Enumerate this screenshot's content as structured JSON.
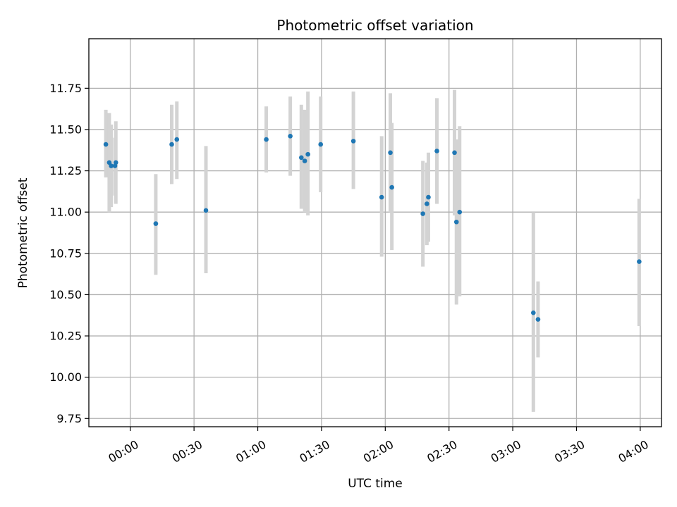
{
  "chart_data": {
    "type": "scatter",
    "title": "Photometric offset variation",
    "xlabel": "UTC time",
    "ylabel": "Photometric offset",
    "x_unit": "minutes",
    "xlim": [
      -19.5,
      250
    ],
    "ylim": [
      9.7,
      12.05
    ],
    "x_ticks": [
      {
        "value": 0,
        "label": "00:00"
      },
      {
        "value": 30,
        "label": "00:30"
      },
      {
        "value": 60,
        "label": "01:00"
      },
      {
        "value": 90,
        "label": "01:30"
      },
      {
        "value": 120,
        "label": "02:00"
      },
      {
        "value": 150,
        "label": "02:30"
      },
      {
        "value": 180,
        "label": "03:00"
      },
      {
        "value": 210,
        "label": "03:30"
      },
      {
        "value": 240,
        "label": "04:00"
      }
    ],
    "y_ticks": [
      {
        "value": 9.75,
        "label": "9.75"
      },
      {
        "value": 10.0,
        "label": "10.00"
      },
      {
        "value": 10.25,
        "label": "10.25"
      },
      {
        "value": 10.5,
        "label": "10.50"
      },
      {
        "value": 10.75,
        "label": "10.75"
      },
      {
        "value": 11.0,
        "label": "11.00"
      },
      {
        "value": 11.25,
        "label": "11.25"
      },
      {
        "value": 11.5,
        "label": "11.50"
      },
      {
        "value": 11.75,
        "label": "11.75"
      }
    ],
    "grid": true,
    "colors": {
      "point": "#1f77b4",
      "errorbar": "#d3d3d3"
    },
    "points": [
      {
        "x": -11.5,
        "y": 11.41,
        "lo": 11.21,
        "hi": 11.62
      },
      {
        "x": -9.9,
        "y": 11.3,
        "lo": 11.0,
        "hi": 11.6
      },
      {
        "x": -9.0,
        "y": 11.28,
        "lo": 11.03,
        "hi": 11.53
      },
      {
        "x": -6.8,
        "y": 11.3,
        "lo": 11.05,
        "hi": 11.55
      },
      {
        "x": -7.2,
        "y": 11.28,
        "lo": 11.1,
        "hi": 11.45
      },
      {
        "x": 12.0,
        "y": 10.93,
        "lo": 10.62,
        "hi": 11.23
      },
      {
        "x": 19.5,
        "y": 11.41,
        "lo": 11.17,
        "hi": 11.65
      },
      {
        "x": 21.9,
        "y": 11.44,
        "lo": 11.2,
        "hi": 11.67
      },
      {
        "x": 35.6,
        "y": 11.01,
        "lo": 10.63,
        "hi": 11.4
      },
      {
        "x": 64.0,
        "y": 11.44,
        "lo": 11.24,
        "hi": 11.64
      },
      {
        "x": 75.3,
        "y": 11.46,
        "lo": 11.22,
        "hi": 11.7
      },
      {
        "x": 80.5,
        "y": 11.33,
        "lo": 11.02,
        "hi": 11.65
      },
      {
        "x": 82.1,
        "y": 11.31,
        "lo": 11.0,
        "hi": 11.62
      },
      {
        "x": 83.6,
        "y": 11.35,
        "lo": 10.98,
        "hi": 11.73
      },
      {
        "x": 89.6,
        "y": 11.41,
        "lo": 11.12,
        "hi": 11.7
      },
      {
        "x": 105.0,
        "y": 11.43,
        "lo": 11.14,
        "hi": 11.73
      },
      {
        "x": 118.3,
        "y": 11.09,
        "lo": 10.73,
        "hi": 11.46
      },
      {
        "x": 122.4,
        "y": 11.36,
        "lo": 11.0,
        "hi": 11.72
      },
      {
        "x": 123.1,
        "y": 11.15,
        "lo": 10.77,
        "hi": 11.54
      },
      {
        "x": 137.7,
        "y": 10.99,
        "lo": 10.67,
        "hi": 11.31
      },
      {
        "x": 139.6,
        "y": 11.05,
        "lo": 10.8,
        "hi": 11.3
      },
      {
        "x": 140.3,
        "y": 11.09,
        "lo": 10.82,
        "hi": 11.36
      },
      {
        "x": 144.3,
        "y": 11.37,
        "lo": 11.05,
        "hi": 11.69
      },
      {
        "x": 152.6,
        "y": 11.36,
        "lo": 10.98,
        "hi": 11.74
      },
      {
        "x": 153.5,
        "y": 10.94,
        "lo": 10.44,
        "hi": 11.44
      },
      {
        "x": 155.0,
        "y": 11.0,
        "lo": 10.49,
        "hi": 11.52
      },
      {
        "x": 189.7,
        "y": 10.39,
        "lo": 9.79,
        "hi": 11.0
      },
      {
        "x": 191.9,
        "y": 10.35,
        "lo": 10.12,
        "hi": 10.58
      },
      {
        "x": 239.5,
        "y": 10.7,
        "lo": 10.31,
        "hi": 11.08
      }
    ]
  }
}
